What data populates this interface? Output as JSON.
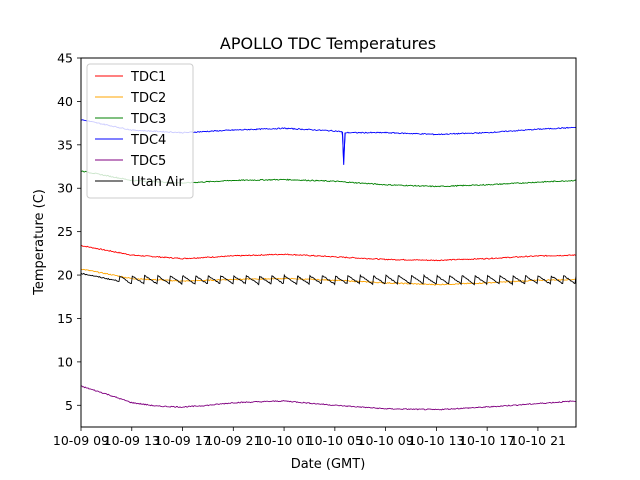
{
  "chart_data": {
    "type": "line",
    "title": "APOLLO TDC Temperatures",
    "xlabel": "Date (GMT)",
    "ylabel": "Temperature (C)",
    "xlim": [
      0,
      39
    ],
    "ylim": [
      2.5,
      45
    ],
    "x_ticks": [
      {
        "x": 0,
        "label": "10-09 09"
      },
      {
        "x": 4,
        "label": "10-09 13"
      },
      {
        "x": 8,
        "label": "10-09 17"
      },
      {
        "x": 12,
        "label": "10-09 21"
      },
      {
        "x": 16,
        "label": "10-10 01"
      },
      {
        "x": 20,
        "label": "10-10 05"
      },
      {
        "x": 24,
        "label": "10-10 09"
      },
      {
        "x": 28,
        "label": "10-10 13"
      },
      {
        "x": 32,
        "label": "10-10 17"
      },
      {
        "x": 36,
        "label": "10-10 21"
      }
    ],
    "y_ticks": [
      5,
      10,
      15,
      20,
      25,
      30,
      35,
      40,
      45
    ],
    "legend_position": "top-left",
    "series": [
      {
        "name": "TDC1",
        "color": "#ff0000",
        "x": [
          0,
          4,
          8,
          12,
          16,
          20,
          24,
          28,
          32,
          36,
          39
        ],
        "y": [
          23.4,
          22.3,
          21.9,
          22.2,
          22.4,
          22.1,
          21.8,
          21.7,
          21.9,
          22.2,
          22.3
        ]
      },
      {
        "name": "TDC2",
        "color": "#ffa500",
        "x": [
          0,
          4,
          8,
          12,
          16,
          20,
          24,
          28,
          32,
          36,
          39
        ],
        "y": [
          20.7,
          19.6,
          19.3,
          19.5,
          19.6,
          19.4,
          19.1,
          18.9,
          19.1,
          19.4,
          19.5
        ]
      },
      {
        "name": "TDC3",
        "color": "#008000",
        "x": [
          0,
          4,
          8,
          12,
          16,
          20,
          24,
          28,
          32,
          36,
          39
        ],
        "y": [
          32.0,
          30.9,
          30.6,
          30.9,
          31.0,
          30.8,
          30.4,
          30.2,
          30.4,
          30.7,
          30.9
        ]
      },
      {
        "name": "TDC4",
        "color": "#0000ff",
        "x": [
          0,
          4,
          8,
          12,
          16,
          20,
          20.6,
          20.7,
          20.8,
          24,
          28,
          32,
          36,
          39
        ],
        "y": [
          37.9,
          36.7,
          36.4,
          36.7,
          36.9,
          36.6,
          36.5,
          32.7,
          36.4,
          36.4,
          36.2,
          36.4,
          36.8,
          37.0
        ]
      },
      {
        "name": "TDC5",
        "color": "#800080",
        "x": [
          0,
          2,
          4,
          6,
          8,
          10,
          12,
          16,
          20,
          24,
          28,
          32,
          36,
          39
        ],
        "y": [
          7.2,
          6.3,
          5.3,
          4.9,
          4.8,
          5.0,
          5.3,
          5.5,
          5.0,
          4.6,
          4.5,
          4.8,
          5.2,
          5.5
        ]
      },
      {
        "name": "Utah Air",
        "color": "#000000",
        "sawtooth": true,
        "period": 1.0,
        "amplitude": 1.0,
        "x": [
          0,
          3,
          39
        ],
        "y": [
          20.2,
          19.3,
          19.3
        ]
      }
    ]
  }
}
